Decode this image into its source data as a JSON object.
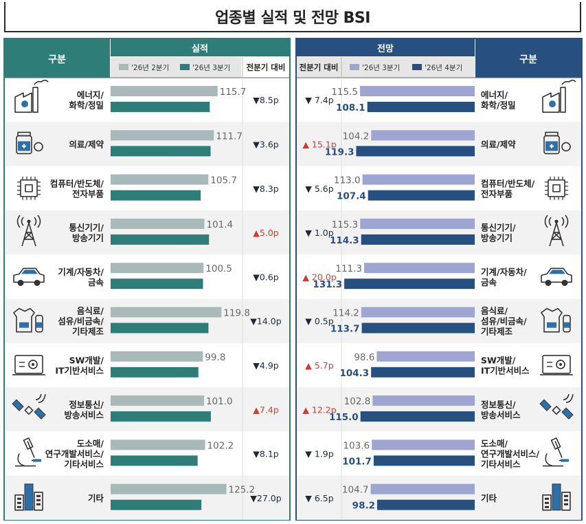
{
  "title": "업종별 실적 및 전망 BSI",
  "left_header": {
    "category_label": "구분",
    "group_label": "실적",
    "legend": [
      "'26년 2분기",
      "'26년 3분기"
    ],
    "diff_label": "전분기 대비"
  },
  "right_header": {
    "category_label": "구분",
    "group_label": "전망",
    "legend": [
      "'26년 3분기",
      "'26년 4분기"
    ],
    "diff_label": "전분기 대비"
  },
  "colors": {
    "left_header": "#2f7d78",
    "right_header": "#274f80",
    "left_bar_prev": "#a9b8b8",
    "left_bar_cur": "#2f7d78",
    "right_bar_prev": "#9ea5d0",
    "right_bar_cur": "#274f80",
    "up": "#d23b2e",
    "down": "#1e2a38",
    "left_cur_text": "#2f7d78",
    "right_cur_text": "#274f80",
    "row_shade": "#f2f2f2"
  },
  "rows": [
    {
      "label": "에너지/\n화학/정밀",
      "icon": "factory-icon"
    },
    {
      "label": "의료/제약",
      "icon": "medicine-icon"
    },
    {
      "label": "컴퓨터/반도체/\n전자부품",
      "icon": "chip-icon"
    },
    {
      "label": "통신기기/\n방송기기",
      "icon": "antenna-tower-icon"
    },
    {
      "label": "기계/자동차/\n금속",
      "icon": "car-icon"
    },
    {
      "label": "음식료/\n섬유/비금속/\n기타제조",
      "icon": "food-textile-icon"
    },
    {
      "label": "SW개발/\nIT기반서비스",
      "icon": "laptop-gear-icon"
    },
    {
      "label": "정보통신/\n방송서비스",
      "icon": "satellite-icon"
    },
    {
      "label": "도소매/\n연구개발서비스/\n기타서비스",
      "icon": "microscope-icon"
    },
    {
      "label": "기타",
      "icon": "buildings-icon"
    }
  ],
  "chart_data": [
    {
      "type": "bar",
      "title": "실적",
      "categories": [
        "에너지/화학/정밀",
        "의료/제약",
        "컴퓨터/반도체/전자부품",
        "통신기기/방송기기",
        "기계/자동차/금속",
        "음식료/섬유/비금속/기타제조",
        "SW개발/IT기반서비스",
        "정보통신/방송서비스",
        "도소매/연구개발서비스/기타서비스",
        "기타"
      ],
      "series": [
        {
          "name": "'26년 2분기",
          "values": [
            115.7,
            111.7,
            105.7,
            101.4,
            100.5,
            119.8,
            99.8,
            101.0,
            102.2,
            125.2
          ]
        },
        {
          "name": "'26년 3분기",
          "values": [
            107.2,
            108.1,
            97.4,
            106.4,
            99.9,
            105.8,
            94.9,
            108.4,
            94.1,
            98.2
          ]
        }
      ],
      "labels": {
        "prev": [
          "115.7",
          "111.7",
          "105.7",
          "101.4",
          "100.5",
          "119.8",
          "99.8",
          "101.0",
          "102.2",
          "125.2"
        ],
        "cur": [
          "107.2",
          "108.1",
          "97.4",
          "106.4",
          "99.9",
          "105.8",
          "94.9",
          "108.4",
          "94.1",
          "98.2"
        ]
      },
      "diff": [
        "8.5p",
        "3.6p",
        "8.3p",
        "5.0p",
        "0.6p",
        "14.0p",
        "4.9p",
        "7.4p",
        "8.1p",
        "27.0p"
      ],
      "diff_dir": [
        "down",
        "down",
        "down",
        "up",
        "down",
        "down",
        "down",
        "up",
        "down",
        "down"
      ]
    },
    {
      "type": "bar",
      "title": "전망",
      "categories": [
        "에너지/화학/정밀",
        "의료/제약",
        "컴퓨터/반도체/전자부품",
        "통신기기/방송기기",
        "기계/자동차/금속",
        "음식료/섬유/비금속/기타제조",
        "SW개발/IT기반서비스",
        "정보통신/방송서비스",
        "도소매/연구개발서비스/기타서비스",
        "기타"
      ],
      "series": [
        {
          "name": "'26년 3분기",
          "values": [
            115.5,
            104.2,
            113.0,
            115.3,
            111.3,
            114.2,
            98.6,
            102.8,
            103.6,
            104.7
          ]
        },
        {
          "name": "'26년 4분기",
          "values": [
            108.1,
            119.3,
            107.4,
            114.3,
            131.3,
            113.7,
            104.3,
            115.0,
            101.7,
            98.2
          ]
        }
      ],
      "labels": {
        "prev": [
          "115.5",
          "104.2",
          "113.0",
          "115.3",
          "111.3",
          "114.2",
          "98.6",
          "102.8",
          "103.6",
          "104.7"
        ],
        "cur": [
          "108.1",
          "119.3",
          "107.4",
          "114.3",
          "131.3",
          "113.7",
          "104.3",
          "115.0",
          "101.7",
          "98.2"
        ]
      },
      "diff": [
        "7.4p",
        "15.1p",
        "5.6p",
        "1.0p",
        "20.0p",
        "0.5p",
        "5.7p",
        "12.2p",
        "1.9p",
        "6.5p"
      ],
      "diff_dir": [
        "down",
        "up",
        "down",
        "down",
        "up",
        "down",
        "up",
        "up",
        "down",
        "down"
      ]
    }
  ]
}
